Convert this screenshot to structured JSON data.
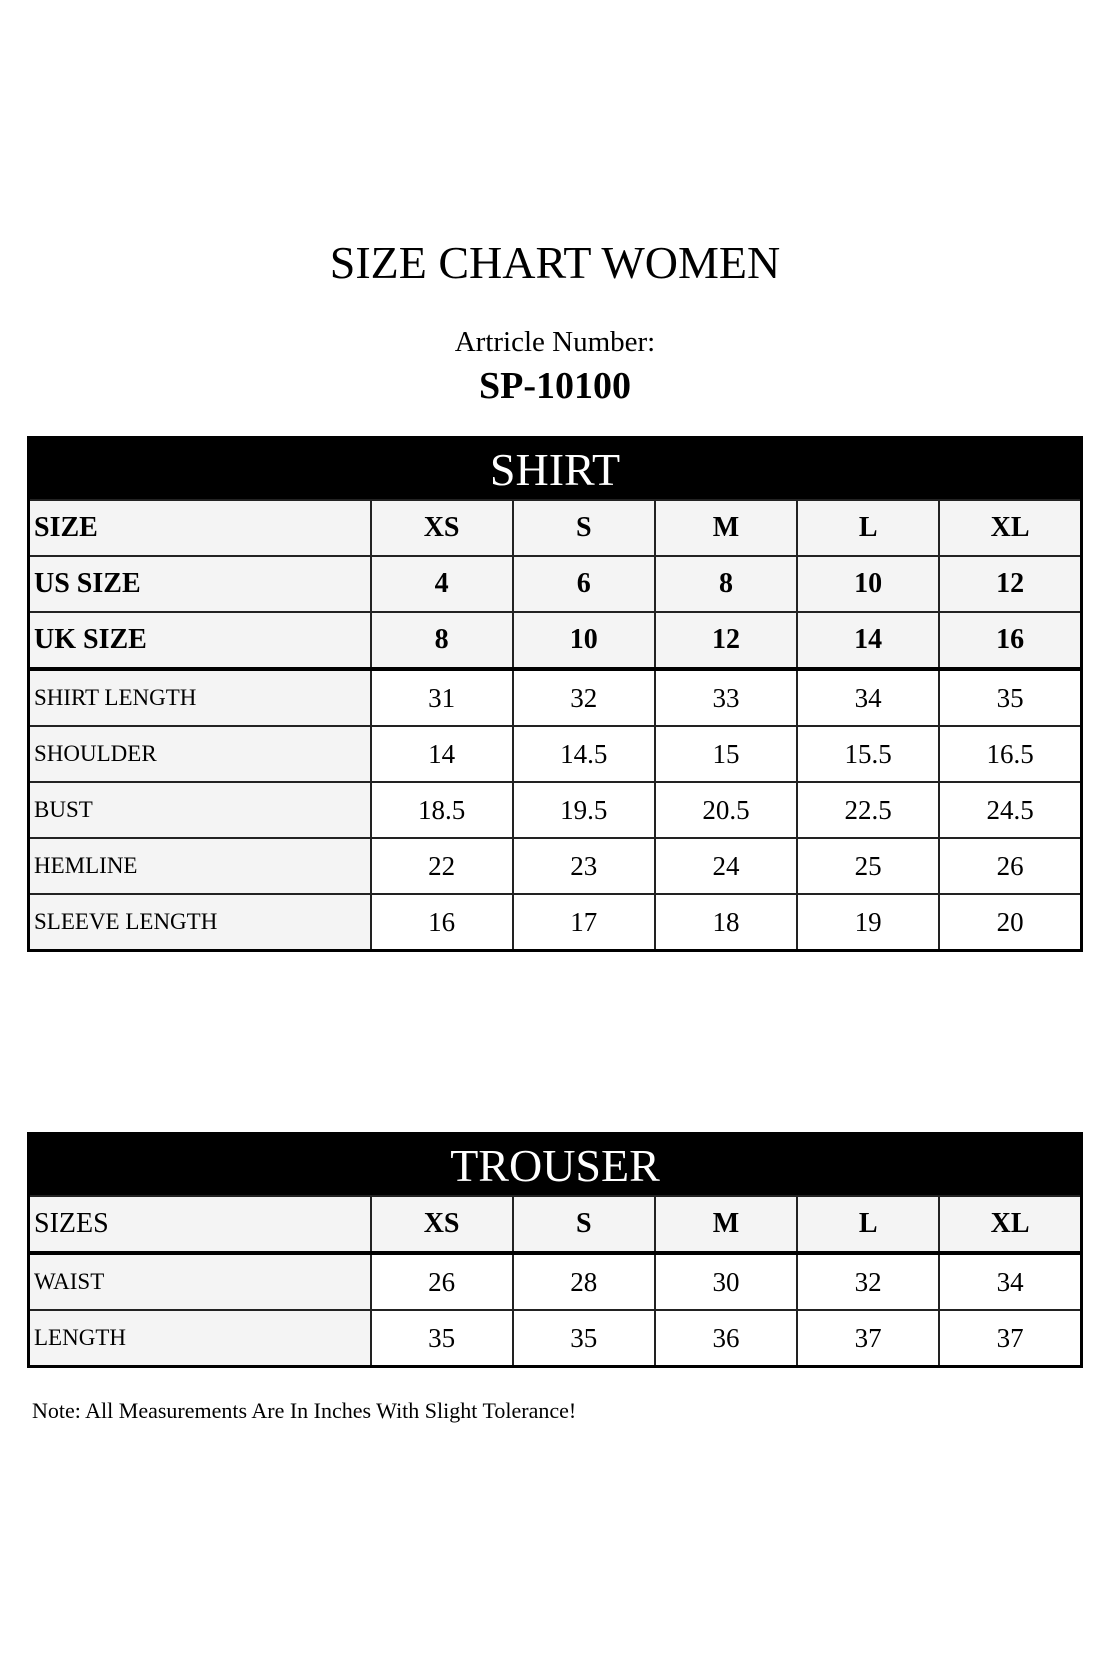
{
  "title": "SIZE CHART WOMEN",
  "article_label": "Artricle Number:",
  "article_number": "SP-10100",
  "shirt": {
    "heading": "SHIRT",
    "header_rows": [
      {
        "label": "SIZE",
        "values": [
          "XS",
          "S",
          "M",
          "L",
          "XL"
        ]
      },
      {
        "label": "US SIZE",
        "values": [
          "4",
          "6",
          "8",
          "10",
          "12"
        ]
      },
      {
        "label": "UK SIZE",
        "values": [
          "8",
          "10",
          "12",
          "14",
          "16"
        ]
      }
    ],
    "rows": [
      {
        "label": "SHIRT LENGTH",
        "values": [
          "31",
          "32",
          "33",
          "34",
          "35"
        ]
      },
      {
        "label": "SHOULDER",
        "values": [
          "14",
          "14.5",
          "15",
          "15.5",
          "16.5"
        ]
      },
      {
        "label": "BUST",
        "values": [
          "18.5",
          "19.5",
          "20.5",
          "22.5",
          "24.5"
        ]
      },
      {
        "label": "HEMLINE",
        "values": [
          "22",
          "23",
          "24",
          "25",
          "26"
        ]
      },
      {
        "label": "SLEEVE LENGTH",
        "values": [
          "16",
          "17",
          "18",
          "19",
          "20"
        ]
      }
    ]
  },
  "trouser": {
    "heading": "TROUSER",
    "header_row": {
      "label": "SIZES",
      "values": [
        "XS",
        "S",
        "M",
        "L",
        "XL"
      ]
    },
    "rows": [
      {
        "label": "WAIST",
        "values": [
          "26",
          "28",
          "30",
          "32",
          "34"
        ]
      },
      {
        "label": "LENGTH",
        "values": [
          "35",
          "35",
          "36",
          "37",
          "37"
        ]
      }
    ]
  },
  "note": "Note: All Measurements Are In Inches With Slight Tolerance!"
}
